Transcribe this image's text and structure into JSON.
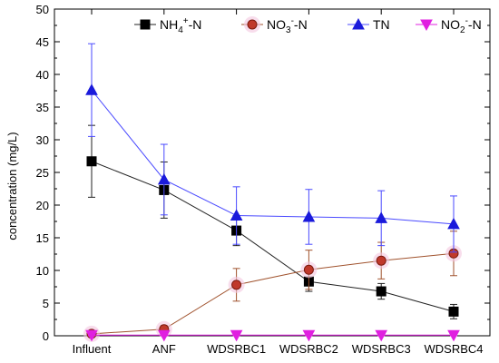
{
  "chart_data": {
    "type": "line",
    "categories": [
      "Influent",
      "ANF",
      "WDSRBC1",
      "WDSRBC2",
      "WDSRBC3",
      "WDSRBC4"
    ],
    "ylabel": "concentration (mg/L)",
    "xlabel": "",
    "ylim": [
      0,
      50
    ],
    "yticks": [
      0,
      5,
      10,
      15,
      20,
      25,
      30,
      35,
      40,
      45,
      50
    ],
    "legend_position": "top",
    "grid": false,
    "series": [
      {
        "name": "NH4+-N",
        "label_parts": {
          "base": "NH",
          "sub": "4",
          "sup": "+",
          "tail": "-N"
        },
        "color": "#000000",
        "line_color": "#222222",
        "marker": "square",
        "values": [
          26.7,
          22.3,
          16.1,
          8.3,
          6.8,
          3.7
        ],
        "errors": [
          5.5,
          4.3,
          2.3,
          1.5,
          1.2,
          1.1
        ]
      },
      {
        "name": "NO3--N",
        "label_parts": {
          "base": "NO",
          "sub": "3",
          "sup": "-",
          "tail": "-N"
        },
        "color": "#c0392b",
        "line_color": "#a0522d",
        "marker": "circle",
        "values": [
          0.3,
          1.0,
          7.8,
          10.1,
          11.5,
          12.6
        ],
        "errors": [
          0.4,
          0.6,
          2.5,
          3.0,
          2.8,
          3.4
        ]
      },
      {
        "name": "TN",
        "label_parts": {
          "base": "TN",
          "sub": "",
          "sup": "",
          "tail": ""
        },
        "color": "#1a1adb",
        "line_color": "#4a4aff",
        "marker": "triangle-up",
        "values": [
          37.6,
          23.9,
          18.4,
          18.2,
          18.0,
          17.1
        ],
        "errors": [
          7.1,
          5.4,
          4.4,
          4.2,
          4.2,
          4.3
        ]
      },
      {
        "name": "NO2--N",
        "label_parts": {
          "base": "NO",
          "sub": "2",
          "sup": "-",
          "tail": "-N"
        },
        "color": "#e020e0",
        "line_color": "#e020e0",
        "marker": "triangle-down",
        "values": [
          0.1,
          0.1,
          0.1,
          0.1,
          0.1,
          0.1
        ],
        "errors": [
          0.1,
          0.1,
          0.1,
          0.1,
          0.1,
          0.1
        ]
      }
    ]
  }
}
